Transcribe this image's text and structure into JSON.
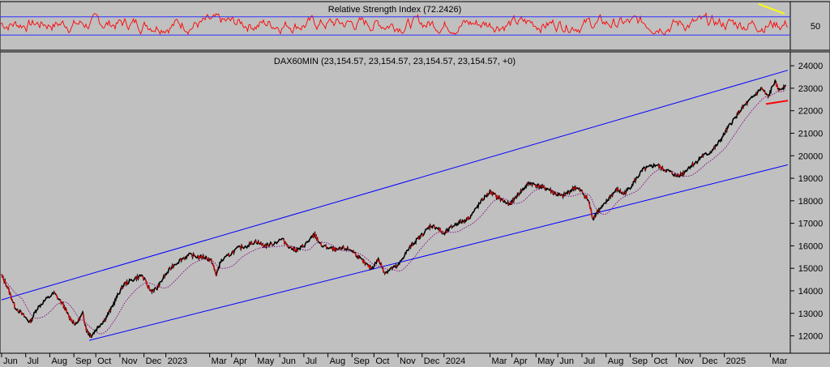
{
  "chart_data": [
    {
      "type": "line",
      "title": "Relative Strength Index (72.2426)",
      "ytick_labels": [
        "50"
      ],
      "ylim": [
        0,
        100
      ],
      "reference_lines": [
        70,
        30
      ],
      "trendline_color": "#ffff00",
      "series_color": "#ff0000",
      "grid": false
    },
    {
      "type": "line",
      "title": "DAX60MIN (23,154.57, 23,154.57, 23,154.57, 23,154.57, +0)",
      "ylim": [
        11300,
        24400
      ],
      "y_ticks": [
        12000,
        13000,
        14000,
        15000,
        16000,
        17000,
        18000,
        19000,
        20000,
        21000,
        22000,
        23000,
        24000
      ],
      "ytick_labels": [
        "12000",
        "13000",
        "14000",
        "15000",
        "16000",
        "17000",
        "18000",
        "19000",
        "20000",
        "21000",
        "22000",
        "23000",
        "24000"
      ],
      "x_labels": [
        "Jun",
        "Jul",
        "Aug",
        "Sep",
        "Oct",
        "Nov",
        "Dec",
        "2023",
        "Mar",
        "Apr",
        "May",
        "Jun",
        "Jul",
        "Aug",
        "Sep",
        "Oct",
        "Nov",
        "Dec",
        "2024",
        "Mar",
        "Apr",
        "May",
        "Jun",
        "Jul",
        "Aug",
        "Sep",
        "Oct",
        "Nov",
        "Dec",
        "2025",
        "Mar"
      ],
      "x_label_index": [
        0,
        1.1,
        2.2,
        3.3,
        4.3,
        5.4,
        6.5,
        7.5,
        9.5,
        10.5,
        11.6,
        12.7,
        13.8,
        14.9,
        16.0,
        17.0,
        18.1,
        19.2,
        20.2,
        22.3,
        23.3,
        24.4,
        25.4,
        26.5,
        27.6,
        28.7,
        29.7,
        30.8,
        31.9,
        33.0,
        35.1
      ],
      "price_series": [
        [
          0,
          14700
        ],
        [
          0.3,
          14100
        ],
        [
          0.6,
          13300
        ],
        [
          1.0,
          12900
        ],
        [
          1.3,
          12600
        ],
        [
          1.6,
          13200
        ],
        [
          2.0,
          13600
        ],
        [
          2.4,
          13900
        ],
        [
          2.8,
          13400
        ],
        [
          3.1,
          12800
        ],
        [
          3.4,
          12500
        ],
        [
          3.7,
          13000
        ],
        [
          3.9,
          12200
        ],
        [
          4.1,
          12000
        ],
        [
          4.4,
          12400
        ],
        [
          4.7,
          12700
        ],
        [
          5.0,
          13200
        ],
        [
          5.3,
          13800
        ],
        [
          5.6,
          14300
        ],
        [
          6.0,
          14500
        ],
        [
          6.4,
          14700
        ],
        [
          6.8,
          14000
        ],
        [
          7.1,
          14100
        ],
        [
          7.4,
          14600
        ],
        [
          7.8,
          15100
        ],
        [
          8.2,
          15400
        ],
        [
          8.6,
          15600
        ],
        [
          9.0,
          15500
        ],
        [
          9.3,
          15500
        ],
        [
          9.6,
          15300
        ],
        [
          9.8,
          14700
        ],
        [
          10.0,
          15300
        ],
        [
          10.4,
          15600
        ],
        [
          10.8,
          15900
        ],
        [
          11.2,
          16000
        ],
        [
          11.6,
          16200
        ],
        [
          12.0,
          16000
        ],
        [
          12.4,
          16100
        ],
        [
          12.8,
          16300
        ],
        [
          13.2,
          15900
        ],
        [
          13.5,
          15800
        ],
        [
          13.8,
          16000
        ],
        [
          14.1,
          16300
        ],
        [
          14.3,
          16500
        ],
        [
          14.6,
          16000
        ],
        [
          15.0,
          15900
        ],
        [
          15.3,
          15800
        ],
        [
          15.6,
          15900
        ],
        [
          16.0,
          15800
        ],
        [
          16.3,
          15500
        ],
        [
          16.6,
          15200
        ],
        [
          16.9,
          15000
        ],
        [
          17.2,
          15400
        ],
        [
          17.5,
          14800
        ],
        [
          17.8,
          15000
        ],
        [
          18.1,
          15100
        ],
        [
          18.4,
          15600
        ],
        [
          18.7,
          16000
        ],
        [
          19.0,
          16300
        ],
        [
          19.3,
          16600
        ],
        [
          19.6,
          16900
        ],
        [
          19.9,
          16800
        ],
        [
          20.2,
          16500
        ],
        [
          20.5,
          16800
        ],
        [
          20.8,
          17000
        ],
        [
          21.1,
          17100
        ],
        [
          21.4,
          17300
        ],
        [
          21.7,
          17700
        ],
        [
          22.0,
          18100
        ],
        [
          22.3,
          18400
        ],
        [
          22.6,
          18200
        ],
        [
          22.9,
          18000
        ],
        [
          23.2,
          17800
        ],
        [
          23.5,
          18200
        ],
        [
          23.8,
          18500
        ],
        [
          24.1,
          18800
        ],
        [
          24.4,
          18700
        ],
        [
          24.7,
          18600
        ],
        [
          25.0,
          18500
        ],
        [
          25.3,
          18300
        ],
        [
          25.6,
          18200
        ],
        [
          25.9,
          18400
        ],
        [
          26.2,
          18600
        ],
        [
          26.5,
          18400
        ],
        [
          26.8,
          18000
        ],
        [
          27.0,
          17200
        ],
        [
          27.2,
          17500
        ],
        [
          27.5,
          17800
        ],
        [
          27.8,
          18200
        ],
        [
          28.1,
          18500
        ],
        [
          28.4,
          18300
        ],
        [
          28.7,
          18600
        ],
        [
          29.0,
          19000
        ],
        [
          29.3,
          19400
        ],
        [
          29.6,
          19500
        ],
        [
          29.9,
          19600
        ],
        [
          30.2,
          19400
        ],
        [
          30.5,
          19300
        ],
        [
          30.8,
          19100
        ],
        [
          31.1,
          19200
        ],
        [
          31.4,
          19500
        ],
        [
          31.7,
          19700
        ],
        [
          32.0,
          20000
        ],
        [
          32.3,
          20100
        ],
        [
          32.6,
          20400
        ],
        [
          32.9,
          20800
        ],
        [
          33.2,
          21300
        ],
        [
          33.5,
          21700
        ],
        [
          33.8,
          22100
        ],
        [
          34.1,
          22400
        ],
        [
          34.4,
          22700
        ],
        [
          34.7,
          23000
        ],
        [
          35.0,
          22600
        ],
        [
          35.3,
          23300
        ],
        [
          35.5,
          22900
        ],
        [
          35.8,
          23150
        ]
      ],
      "moving_average_color": "#800080",
      "price_color": "#000000",
      "bearish_highlight_color": "#ff0000",
      "channel_color": "#0000ff",
      "channel_upper": [
        [
          0,
          13600
        ],
        [
          35.9,
          23800
        ]
      ],
      "channel_lower": [
        [
          4.0,
          11800
        ],
        [
          35.9,
          19600
        ]
      ],
      "support_line": [
        [
          34.9,
          22300
        ],
        [
          35.9,
          22450
        ]
      ],
      "support_color": "#ff0000",
      "grid": false
    }
  ]
}
